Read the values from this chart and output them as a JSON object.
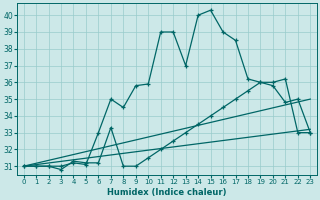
{
  "xlabel": "Humidex (Indice chaleur)",
  "bg_color": "#cce8e8",
  "grid_color": "#99cccc",
  "line_color": "#006666",
  "xlim": [
    -0.5,
    23.5
  ],
  "ylim": [
    30.5,
    40.7
  ],
  "yticks": [
    31,
    32,
    33,
    34,
    35,
    36,
    37,
    38,
    39,
    40
  ],
  "xticks": [
    0,
    1,
    2,
    3,
    4,
    5,
    6,
    7,
    8,
    9,
    10,
    11,
    12,
    13,
    14,
    15,
    16,
    17,
    18,
    19,
    20,
    21,
    22,
    23
  ],
  "line1_x": [
    0,
    1,
    2,
    3,
    4,
    5,
    6,
    7,
    8,
    9,
    10,
    11,
    12,
    13,
    14,
    15,
    16,
    17,
    18,
    19,
    20,
    21,
    22,
    23
  ],
  "line1_y": [
    31.0,
    31.0,
    31.0,
    31.0,
    31.2,
    31.1,
    33.0,
    35.0,
    34.5,
    35.8,
    35.9,
    39.0,
    39.0,
    37.0,
    40.0,
    40.3,
    39.0,
    38.5,
    36.2,
    36.0,
    35.8,
    34.8,
    35.0,
    33.0
  ],
  "line2_x": [
    0,
    1,
    2,
    3,
    4,
    5,
    6,
    7,
    8,
    9,
    10,
    11,
    12,
    13,
    14,
    15,
    16,
    17,
    18,
    19,
    20,
    21,
    22,
    23
  ],
  "line2_y": [
    31.0,
    31.0,
    31.0,
    30.8,
    31.3,
    31.2,
    31.2,
    33.3,
    31.0,
    31.0,
    31.5,
    32.0,
    32.5,
    33.0,
    33.5,
    34.0,
    34.5,
    35.0,
    35.5,
    36.0,
    36.0,
    36.2,
    33.0,
    33.0
  ],
  "line3_x": [
    0,
    23
  ],
  "line3_y": [
    31.0,
    33.2
  ],
  "line4_x": [
    0,
    23
  ],
  "line4_y": [
    31.0,
    35.0
  ]
}
